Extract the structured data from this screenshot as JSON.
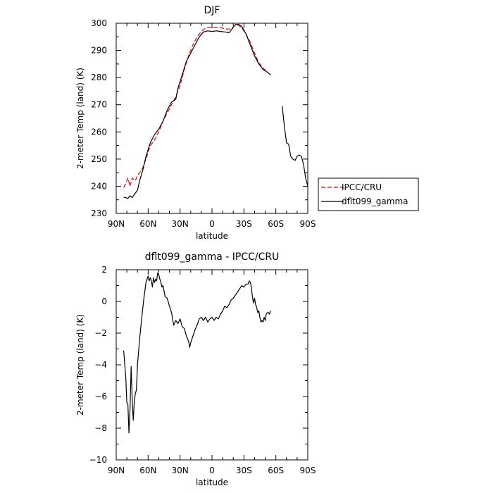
{
  "chart_data": [
    {
      "type": "line",
      "title": "DJF",
      "xlabel": "latitude",
      "ylabel": "2-meter Temp (land) (K)",
      "xlim": [
        -90,
        90
      ],
      "ylim": [
        230,
        300
      ],
      "x_ticks": [
        -90,
        -60,
        -30,
        0,
        30,
        60,
        90
      ],
      "x_tick_labels": [
        "90N",
        "60N",
        "30N",
        "0",
        "30S",
        "60S",
        "90S"
      ],
      "y_ticks": [
        230,
        240,
        250,
        260,
        270,
        280,
        290,
        300
      ],
      "y_tick_labels": [
        "230",
        "240",
        "250",
        "260",
        "270",
        "280",
        "290",
        "300"
      ],
      "legend": {
        "placement": "right",
        "entries": [
          "IPCC/CRU",
          "dflt099_gamma"
        ]
      },
      "series": [
        {
          "name": "IPCC/CRU",
          "color": "#e00000",
          "dash": "dashed",
          "points": [
            [
              -83,
              239.5
            ],
            [
              -81,
              241
            ],
            [
              -79,
              243
            ],
            [
              -77,
              240
            ],
            [
              -75,
              243
            ],
            [
              -72,
              242
            ],
            [
              -70,
              244
            ],
            [
              -66,
              246
            ],
            [
              -62,
              250
            ],
            [
              -58,
              255
            ],
            [
              -54,
              257
            ],
            [
              -50,
              260
            ],
            [
              -46,
              264
            ],
            [
              -42,
              267
            ],
            [
              -38,
              270
            ],
            [
              -34,
              273
            ],
            [
              -30,
              277
            ],
            [
              -26,
              283
            ],
            [
              -22,
              288
            ],
            [
              -18,
              292
            ],
            [
              -14,
              295
            ],
            [
              -10,
              297
            ],
            [
              -6,
              298.2
            ],
            [
              -2,
              298.5
            ],
            [
              2,
              298.4
            ],
            [
              6,
              298.4
            ],
            [
              10,
              298.2
            ],
            [
              14,
              297.8
            ],
            [
              18,
              298
            ],
            [
              22,
              299.3
            ],
            [
              25,
              299.3
            ],
            [
              28,
              298.2
            ],
            [
              32,
              296
            ],
            [
              36,
              293
            ],
            [
              40,
              289
            ],
            [
              44,
              285.5
            ],
            [
              48,
              283.5
            ],
            [
              52,
              282
            ],
            [
              55,
              281
            ]
          ]
        },
        {
          "name": "dflt099_gamma",
          "color": "#000000",
          "dash": "solid",
          "segments": [
            [
              [
                -83,
                236
              ],
              [
                -81,
                235.8
              ],
              [
                -79,
                235.5
              ],
              [
                -77,
                236.5
              ],
              [
                -75,
                235.8
              ],
              [
                -73,
                237
              ],
              [
                -70,
                238.5
              ],
              [
                -68,
                242
              ],
              [
                -65,
                246
              ],
              [
                -62,
                251
              ],
              [
                -58,
                256
              ],
              [
                -54,
                259
              ],
              [
                -50,
                261
              ],
              [
                -46,
                264
              ],
              [
                -42,
                268
              ],
              [
                -38,
                271
              ],
              [
                -34,
                272
              ],
              [
                -32,
                276
              ],
              [
                -28,
                281
              ],
              [
                -24,
                286
              ],
              [
                -20,
                289
              ],
              [
                -16,
                292
              ],
              [
                -12,
                295
              ],
              [
                -8,
                296.8
              ],
              [
                -4,
                297.2
              ],
              [
                0,
                297
              ],
              [
                4,
                297.2
              ],
              [
                8,
                297
              ],
              [
                12,
                296.8
              ],
              [
                16,
                296.5
              ],
              [
                19,
                298
              ],
              [
                22,
                299.5
              ],
              [
                25,
                299.6
              ],
              [
                28,
                298.8
              ],
              [
                32,
                296
              ],
              [
                36,
                292
              ],
              [
                40,
                288
              ],
              [
                44,
                285
              ],
              [
                48,
                283
              ],
              [
                52,
                282
              ],
              [
                55,
                281
              ]
            ],
            [
              [
                66,
                269.5
              ],
              [
                68,
                262
              ],
              [
                70,
                256
              ],
              [
                72,
                255.5
              ],
              [
                74,
                251
              ],
              [
                76,
                250
              ],
              [
                78,
                249.5
              ],
              [
                80,
                251
              ],
              [
                82,
                251.5
              ],
              [
                84,
                251
              ],
              [
                86,
                248
              ],
              [
                88,
                243
              ],
              [
                90,
                240
              ]
            ]
          ]
        }
      ]
    },
    {
      "type": "line",
      "title": "dflt099_gamma - IPCC/CRU",
      "xlabel": "latitude",
      "ylabel": "2-meter Temp (land) (K)",
      "xlim": [
        -90,
        90
      ],
      "ylim": [
        -10,
        2
      ],
      "x_ticks": [
        -90,
        -60,
        -30,
        0,
        30,
        60,
        90
      ],
      "x_tick_labels": [
        "90N",
        "60N",
        "30N",
        "0",
        "30S",
        "60S",
        "90S"
      ],
      "y_ticks": [
        -10,
        -8,
        -6,
        -4,
        -2,
        0,
        2
      ],
      "y_tick_labels": [
        "−10",
        "−8",
        "−6",
        "−4",
        "−2",
        "0",
        "2"
      ],
      "series": [
        {
          "color": "#000000",
          "dash": "solid",
          "points": [
            [
              -83,
              -3.1
            ],
            [
              -81,
              -4.8
            ],
            [
              -80,
              -6.4
            ],
            [
              -79,
              -6.5
            ],
            [
              -78,
              -8.3
            ],
            [
              -77,
              -6.8
            ],
            [
              -76,
              -4.1
            ],
            [
              -75,
              -6.2
            ],
            [
              -74,
              -7.5
            ],
            [
              -73,
              -6.3
            ],
            [
              -72,
              -5.8
            ],
            [
              -71,
              -5.6
            ],
            [
              -70,
              -4
            ],
            [
              -68,
              -2.4
            ],
            [
              -66,
              -1
            ],
            [
              -64,
              0.2
            ],
            [
              -62,
              1.2
            ],
            [
              -61,
              1.4
            ],
            [
              -60,
              1.6
            ],
            [
              -59,
              1.3
            ],
            [
              -58,
              1.5
            ],
            [
              -57,
              1.3
            ],
            [
              -56,
              0.9
            ],
            [
              -55,
              1.5
            ],
            [
              -54,
              1.2
            ],
            [
              -53,
              1.4
            ],
            [
              -52,
              1.3
            ],
            [
              -51,
              1.8
            ],
            [
              -50,
              1.7
            ],
            [
              -49,
              1.4
            ],
            [
              -48,
              1.2
            ],
            [
              -47,
              0.9
            ],
            [
              -46,
              1
            ],
            [
              -44,
              0.3
            ],
            [
              -42,
              0.2
            ],
            [
              -40,
              -0.3
            ],
            [
              -38,
              -0.7
            ],
            [
              -36,
              -1.5
            ],
            [
              -34,
              -1.2
            ],
            [
              -32,
              -1.4
            ],
            [
              -30,
              -1.1
            ],
            [
              -28,
              -1.6
            ],
            [
              -26,
              -1.7
            ],
            [
              -24,
              -2.2
            ],
            [
              -22,
              -2.5
            ],
            [
              -21,
              -2.9
            ],
            [
              -20,
              -2.6
            ],
            [
              -18,
              -2.2
            ],
            [
              -16,
              -1.8
            ],
            [
              -14,
              -1.5
            ],
            [
              -12,
              -1.1
            ],
            [
              -10,
              -1
            ],
            [
              -8,
              -1.2
            ],
            [
              -6,
              -1
            ],
            [
              -4,
              -1.3
            ],
            [
              -2,
              -1.1
            ],
            [
              0,
              -1
            ],
            [
              2,
              -1.2
            ],
            [
              4,
              -1
            ],
            [
              6,
              -1.1
            ],
            [
              8,
              -0.8
            ],
            [
              10,
              -0.6
            ],
            [
              12,
              -0.3
            ],
            [
              14,
              -0.4
            ],
            [
              16,
              -0.2
            ],
            [
              18,
              0.1
            ],
            [
              20,
              0.2
            ],
            [
              22,
              0.4
            ],
            [
              24,
              0.6
            ],
            [
              26,
              0.8
            ],
            [
              28,
              1
            ],
            [
              30,
              0.9
            ],
            [
              32,
              1.1
            ],
            [
              34,
              1.1
            ],
            [
              35,
              1.3
            ],
            [
              36,
              1.2
            ],
            [
              37,
              0.9
            ],
            [
              38,
              0.3
            ],
            [
              39,
              -0.1
            ],
            [
              40,
              0.2
            ],
            [
              41,
              -0.2
            ],
            [
              42,
              -0.4
            ],
            [
              43,
              -0.7
            ],
            [
              44,
              -0.6
            ],
            [
              45,
              -1
            ],
            [
              46,
              -1.3
            ],
            [
              47,
              -1.2
            ],
            [
              48,
              -1.3
            ],
            [
              49,
              -1
            ],
            [
              50,
              -1.2
            ],
            [
              51,
              -0.8
            ],
            [
              52,
              -0.7
            ],
            [
              53,
              -0.7
            ],
            [
              54,
              -0.8
            ],
            [
              55,
              -0.6
            ]
          ]
        }
      ]
    }
  ]
}
